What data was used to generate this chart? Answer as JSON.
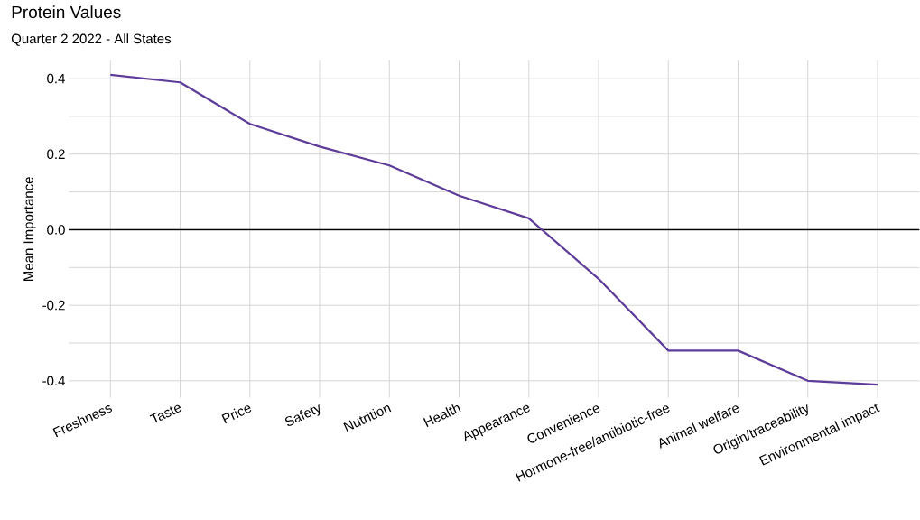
{
  "chart_data": {
    "type": "line",
    "title": "Protein Values",
    "subtitle": "Quarter 2 2022 - All States",
    "ylabel": "Mean Importance",
    "categories": [
      "Freshness",
      "Taste",
      "Price",
      "Safety",
      "Nutrition",
      "Health",
      "Appearance",
      "Convenience",
      "Hormone-free/antibiotic-free",
      "Animal welfare",
      "Origin/traceability",
      "Environmental impact"
    ],
    "series": [
      {
        "color": "#5e3c99",
        "values": [
          0.41,
          0.39,
          0.28,
          0.22,
          0.17,
          0.09,
          0.03,
          -0.13,
          -0.32,
          -0.32,
          -0.4,
          -0.41
        ]
      }
    ],
    "ylim": [
      -0.445,
      0.448
    ],
    "yticks": [
      {
        "value": -0.4,
        "label": "-0.4"
      },
      {
        "value": -0.2,
        "label": "-0.2"
      },
      {
        "value": 0,
        "label": "0.0"
      },
      {
        "value": 0.2,
        "label": "0.2"
      },
      {
        "value": 0.4,
        "label": "0.4"
      }
    ],
    "ref_lines": [
      {
        "axis": "y",
        "value": 0,
        "color": "#000000"
      }
    ],
    "grid": true,
    "marker": "none",
    "line_style": "solid"
  }
}
